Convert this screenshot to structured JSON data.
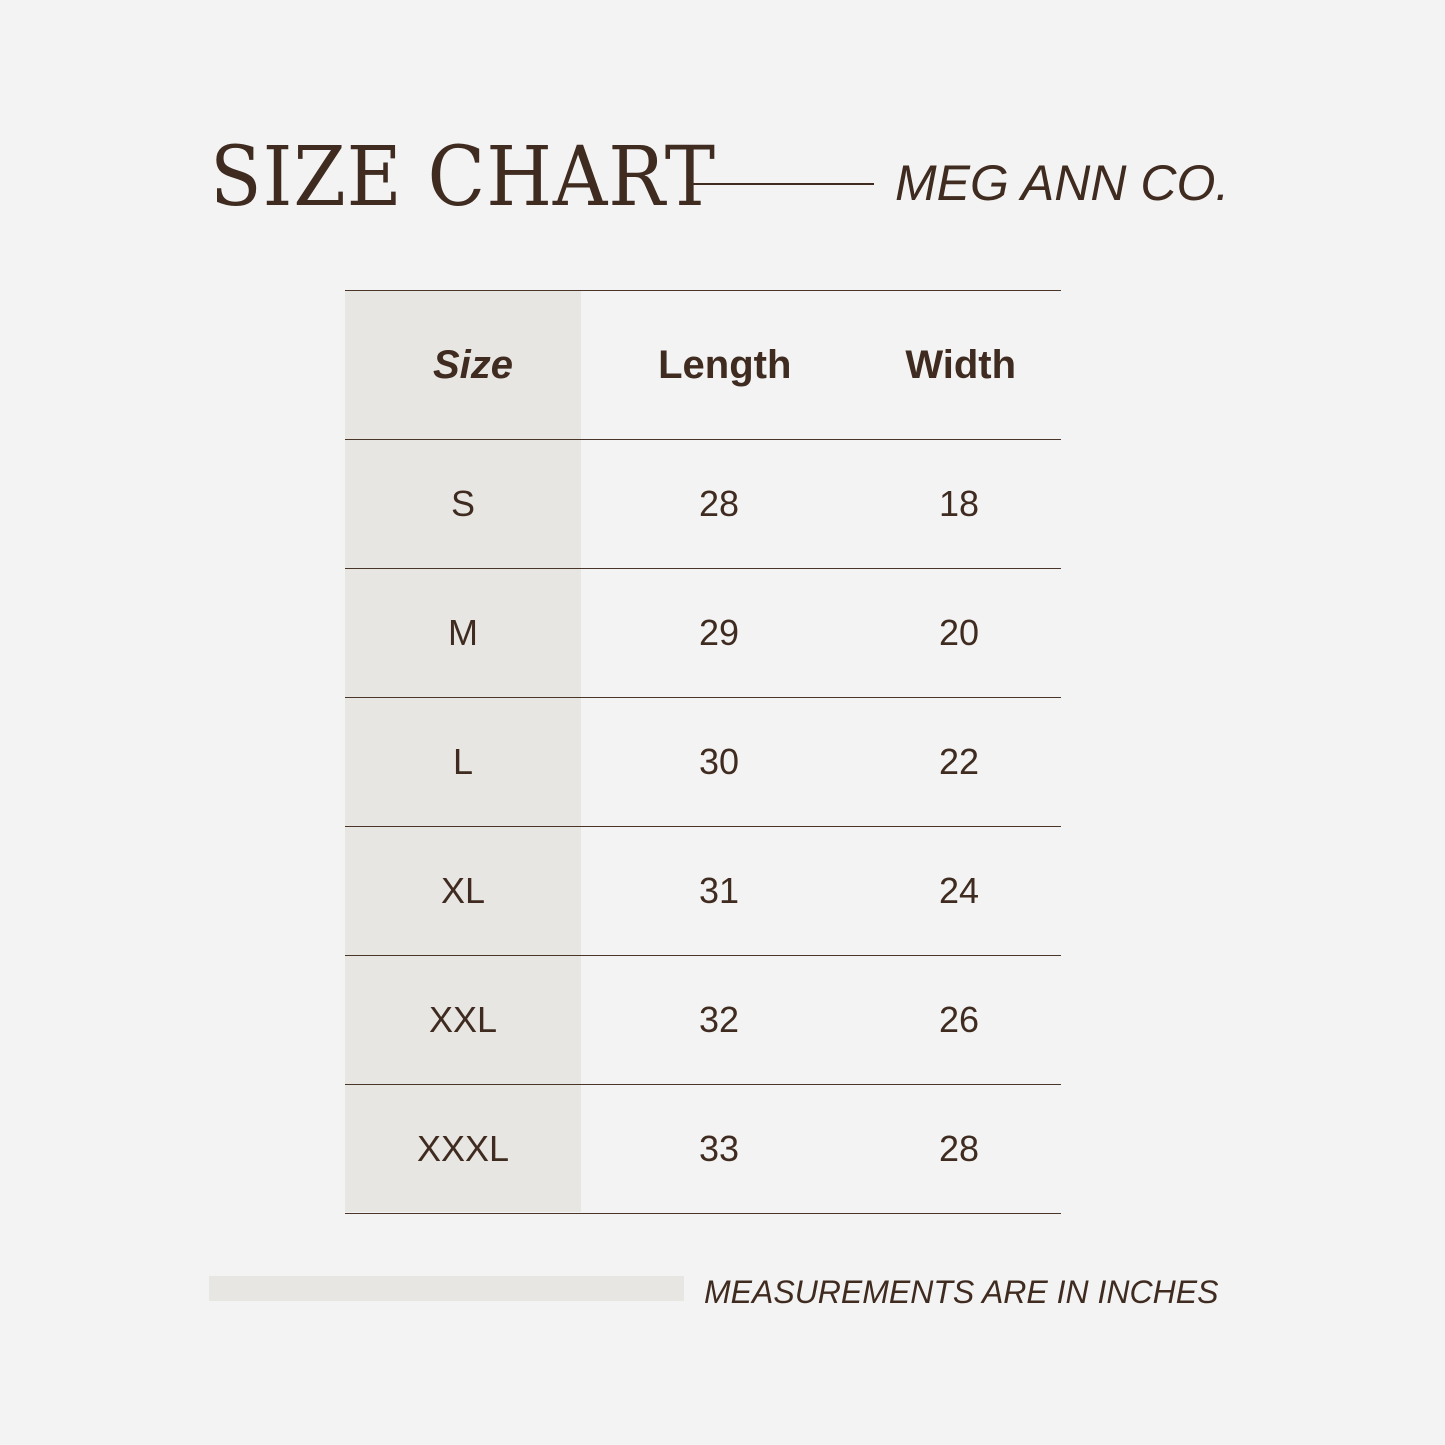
{
  "header": {
    "title": "SIZE CHART",
    "brand": "MEG ANN CO."
  },
  "table": {
    "columns": [
      "Size",
      "Length",
      "Width"
    ],
    "rows": [
      [
        "S",
        "28",
        "18"
      ],
      [
        "M",
        "29",
        "20"
      ],
      [
        "L",
        "30",
        "22"
      ],
      [
        "XL",
        "31",
        "24"
      ],
      [
        "XXL",
        "32",
        "26"
      ],
      [
        "XXXL",
        "33",
        "28"
      ]
    ]
  },
  "footer": {
    "note": "MEASUREMENTS ARE IN INCHES"
  }
}
